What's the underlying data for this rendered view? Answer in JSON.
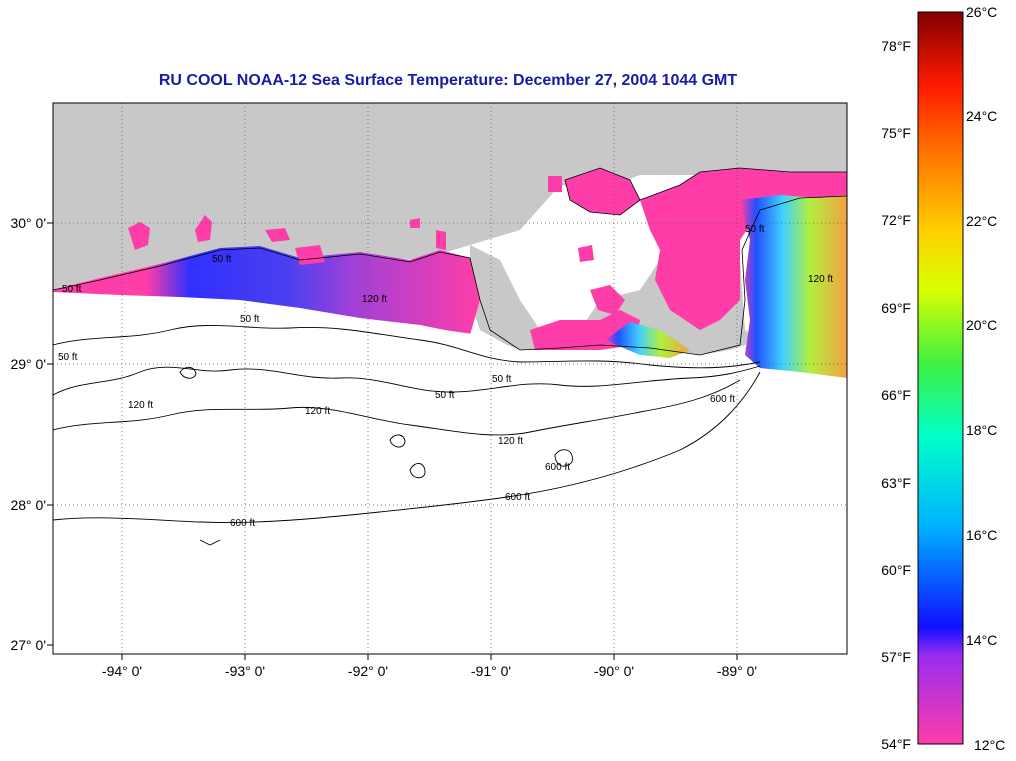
{
  "title": "RU COOL  NOAA-12  Sea Surface Temperature:  December 27, 2004 1044 GMT",
  "axes": {
    "lon_ticks": [
      "-94° 0'",
      "-93° 0'",
      "-92° 0'",
      "-91° 0'",
      "-90° 0'",
      "-89° 0'"
    ],
    "lat_ticks": [
      "30° 0'",
      "29° 0'",
      "28° 0'",
      "27° 0'"
    ]
  },
  "colorbar": {
    "celsius": [
      "26°C",
      "24°C",
      "22°C",
      "20°C",
      "18°C",
      "16°C",
      "14°C",
      "12°C"
    ],
    "fahrenheit": [
      "78°F",
      "75°F",
      "72°F",
      "69°F",
      "66°F",
      "63°F",
      "60°F",
      "57°F",
      "54°F"
    ]
  },
  "contour_labels": [
    "50 ft",
    "50 ft",
    "120 ft",
    "50 ft",
    "50 ft",
    "120 ft",
    "120 ft",
    "50 ft",
    "50 ft",
    "120 ft",
    "600 ft",
    "600 ft",
    "600 ft",
    "600 ft",
    "120 ft",
    "50 ft"
  ],
  "colors": {
    "title": "#1a1aa6",
    "land": "#c8c8c8",
    "sst_cold": "#ff3da8",
    "sst_mid": "#3030ff",
    "sst_warm": "#f5a040"
  }
}
